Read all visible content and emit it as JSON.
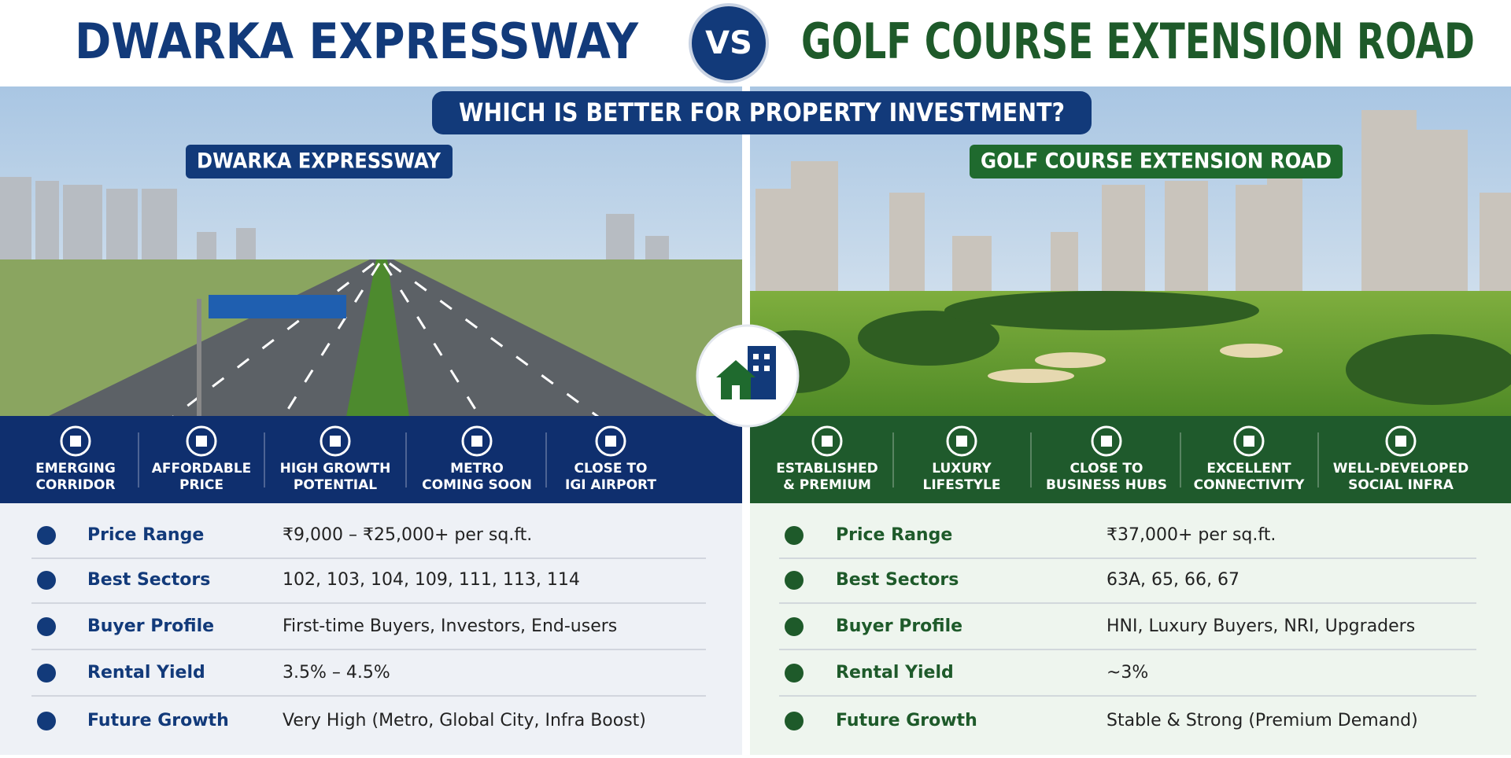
{
  "header": {
    "left_title": "DWARKA EXPRESSWAY",
    "vs": "VS",
    "right_title": "GOLF COURSE EXTENSION ROAD",
    "subtitle": "WHICH IS BETTER FOR PROPERTY INVESTMENT?"
  },
  "left": {
    "label": "DWARKA EXPRESSWAY",
    "features": [
      {
        "lines": [
          "EMERGING",
          "CORRIDOR"
        ]
      },
      {
        "lines": [
          "AFFORDABLE",
          "PRICE"
        ]
      },
      {
        "lines": [
          "HIGH GROWTH",
          "POTENTIAL"
        ]
      },
      {
        "lines": [
          "METRO",
          "COMING SOON"
        ]
      },
      {
        "lines": [
          "CLOSE TO",
          "IGI AIRPORT"
        ]
      }
    ],
    "rows": [
      [
        "Price Range",
        "₹9,000 – ₹25,000+ per sq.ft."
      ],
      [
        "Best Sectors",
        "102, 103, 104, 109, 111, 113, 114"
      ],
      [
        "Buyer Profile",
        "First-time Buyers, Investors, End-users"
      ],
      [
        "Rental Yield",
        "3.5% – 4.5%"
      ],
      [
        "Future Growth",
        "Very High (Metro, Global City, Infra Boost)"
      ]
    ]
  },
  "right": {
    "label": "GOLF COURSE EXTENSION ROAD",
    "features": [
      {
        "lines": [
          "ESTABLISHED",
          "& PREMIUM"
        ]
      },
      {
        "lines": [
          "LUXURY",
          "LIFESTYLE"
        ]
      },
      {
        "lines": [
          "CLOSE TO",
          "BUSINESS HUBS"
        ]
      },
      {
        "lines": [
          "EXCELLENT",
          "CONNECTIVITY"
        ]
      },
      {
        "lines": [
          "WELL-DEVELOPED",
          "SOCIAL INFRA"
        ]
      }
    ],
    "rows": [
      [
        "Price Range",
        "₹37,000+ per sq.ft."
      ],
      [
        "Best Sectors",
        "63A, 65, 66, 67"
      ],
      [
        "Buyer Profile",
        "HNI, Luxury Buyers, NRI, Upgraders"
      ],
      [
        "Rental Yield",
        "~3%"
      ],
      [
        "Future Growth",
        "Stable & Strong (Premium Demand)"
      ]
    ]
  }
}
